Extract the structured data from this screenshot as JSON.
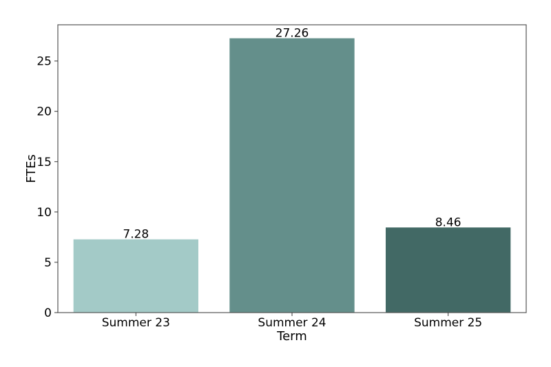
{
  "chart_data": {
    "type": "bar",
    "title": "",
    "xlabel": "Term",
    "ylabel": "FTEs",
    "categories": [
      "Summer 23",
      "Summer 24",
      "Summer 25"
    ],
    "values": [
      7.28,
      27.26,
      8.46
    ],
    "value_labels": [
      "7.28",
      "27.26",
      "8.46"
    ],
    "colors": [
      "#a3cac7",
      "#648f8b",
      "#426965"
    ],
    "ylim": [
      0,
      28.6
    ],
    "yticks": [
      0,
      5,
      10,
      15,
      20,
      25
    ],
    "ytick_labels": [
      "0",
      "5",
      "10",
      "15",
      "20",
      "25"
    ],
    "grid": false,
    "legend": "none"
  }
}
